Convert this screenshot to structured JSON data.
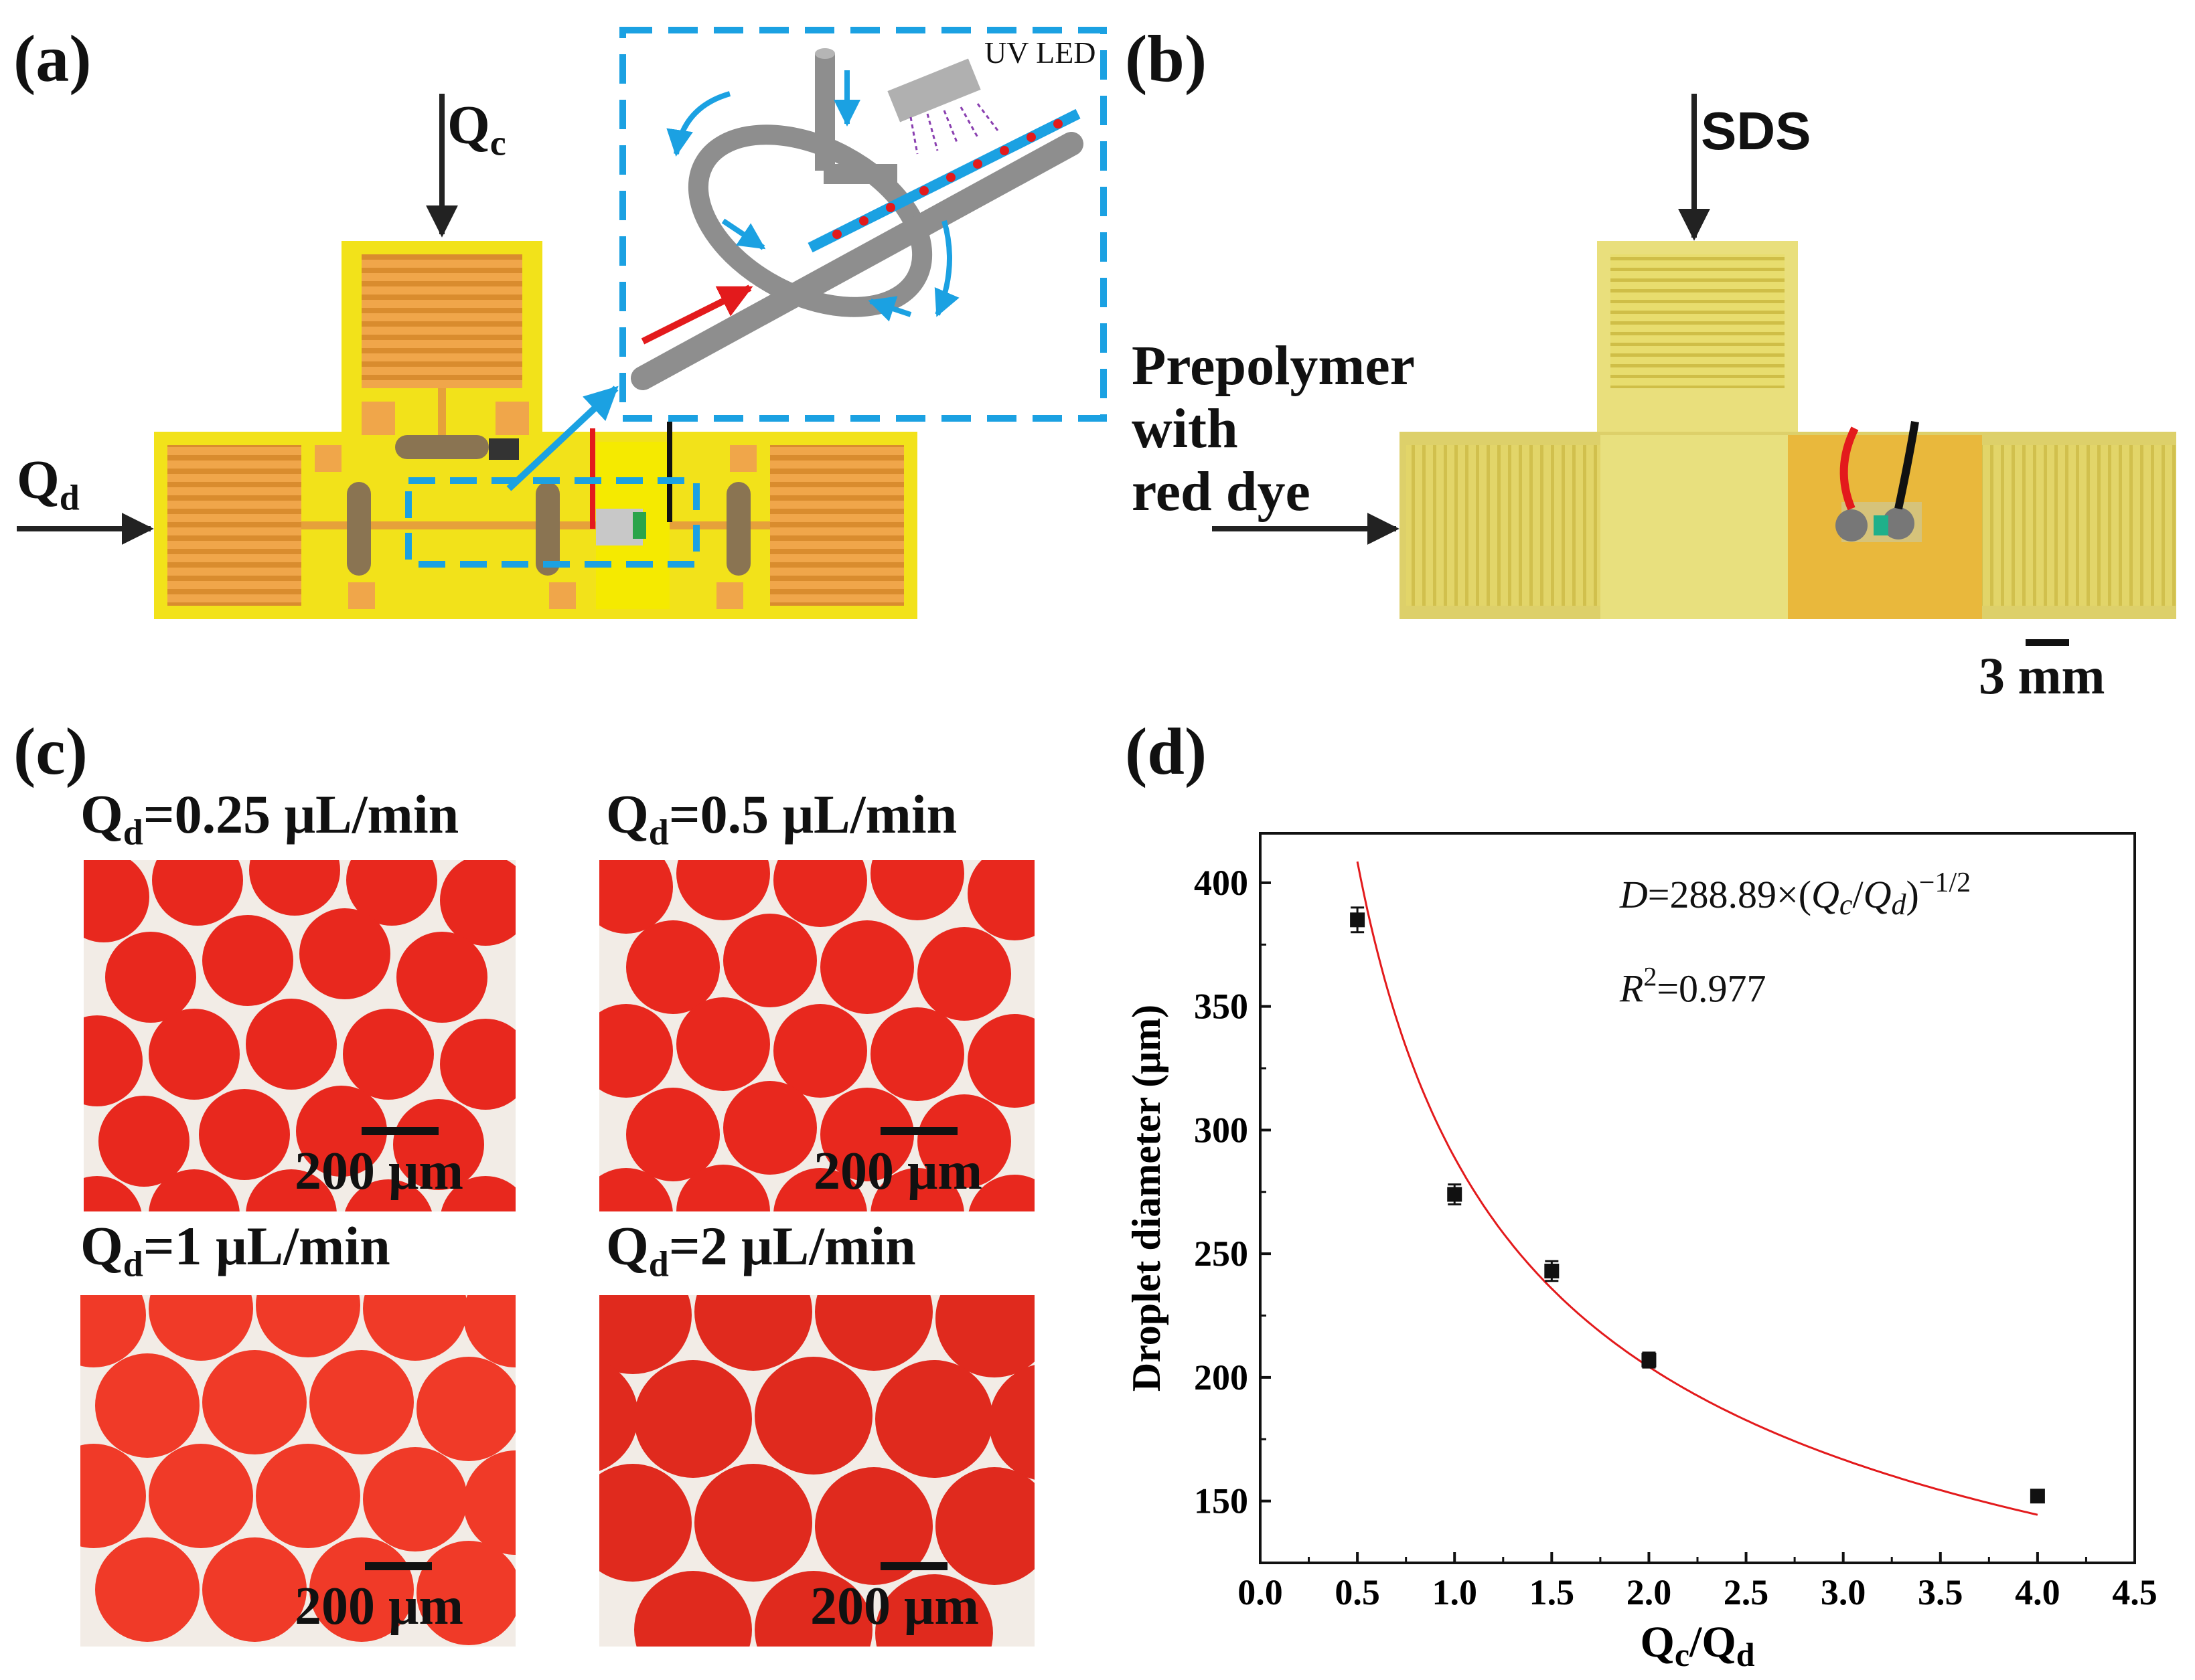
{
  "panels": {
    "a": {
      "label": "(a)",
      "qc": {
        "main": "Q",
        "sub": "c"
      },
      "qd": {
        "main": "Q",
        "sub": "d"
      },
      "inset_text": "UV LED"
    },
    "b": {
      "label": "(b)",
      "sds": "SDS",
      "prepolymer_lines": [
        "Prepolymer",
        "with",
        "red dye"
      ],
      "scale_bar": "3 mm"
    },
    "c": {
      "label": "(c)",
      "images": [
        {
          "q_main": "Q",
          "q_sub": "d",
          "q_rest": "=0.25 μL/min",
          "scale": "200 μm"
        },
        {
          "q_main": "Q",
          "q_sub": "d",
          "q_rest": "=0.5 μL/min",
          "scale": "200 μm"
        },
        {
          "q_main": "Q",
          "q_sub": "d",
          "q_rest": "=1 μL/min",
          "scale": "200 μm"
        },
        {
          "q_main": "Q",
          "q_sub": "d",
          "q_rest": "=2 μL/min",
          "scale": "200 μm"
        }
      ]
    },
    "d": {
      "label": "(d)"
    }
  },
  "chart_data": {
    "type": "scatter",
    "title": "",
    "xlabel": {
      "main1": "Q",
      "sub1": "c",
      "sep": "/",
      "main2": "Q",
      "sub2": "d"
    },
    "ylabel": "Droplet diameter (μm)",
    "xlim": [
      0.0,
      4.5
    ],
    "ylim": [
      125,
      420
    ],
    "xticks": [
      0.0,
      0.5,
      1.0,
      1.5,
      2.0,
      2.5,
      3.0,
      3.5,
      4.0,
      4.5
    ],
    "xtick_labels": [
      "0.0",
      "0.5",
      "1.0",
      "1.5",
      "2.0",
      "2.5",
      "3.0",
      "3.5",
      "4.0",
      "4.5"
    ],
    "yticks": [
      150,
      200,
      250,
      300,
      350,
      400
    ],
    "ytick_labels": [
      "150",
      "200",
      "250",
      "300",
      "350",
      "400"
    ],
    "points": [
      {
        "x": 0.5,
        "y": 385,
        "err": 5
      },
      {
        "x": 1.0,
        "y": 274,
        "err": 4
      },
      {
        "x": 1.5,
        "y": 243,
        "err": 4
      },
      {
        "x": 2.0,
        "y": 207,
        "err": 3
      },
      {
        "x": 4.0,
        "y": 152,
        "err": 2
      }
    ],
    "fit": {
      "equation": "D = 288.89 × (Qc/Qd)^(-1/2)",
      "coefficient": 288.89,
      "exponent": -0.5,
      "x_range": [
        0.5,
        4.0
      ],
      "color": "#e31a1c"
    },
    "annotation": {
      "eq_D": "D",
      "eq_mid": "=288.89×(",
      "eq_Q1": "Q",
      "eq_c": "c",
      "eq_slash": "/",
      "eq_Q2": "Q",
      "eq_d": "d",
      "eq_close": ")",
      "eq_exp": "−1/2",
      "r_R": "R",
      "r_exp": "2",
      "r_val": "=0.977"
    }
  }
}
